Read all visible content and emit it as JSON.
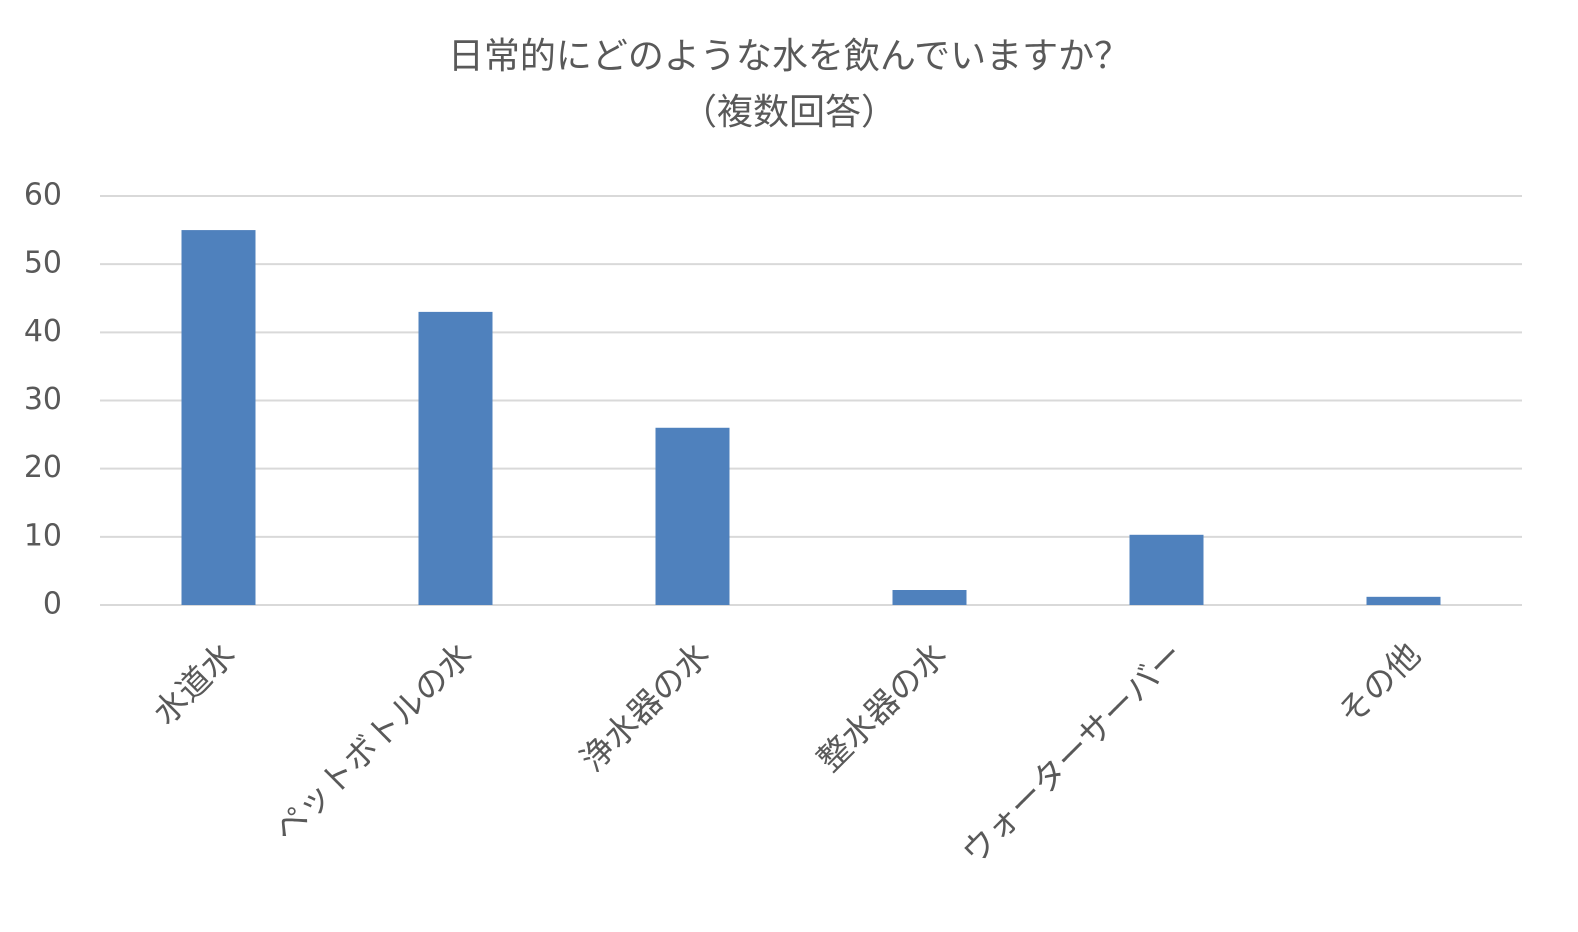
{
  "chart_data": {
    "type": "bar",
    "title": "日常的にどのような水を飲んでいますか？",
    "subtitle": "（複数回答）",
    "categories": [
      "水道水",
      "ペットボトルの水",
      "浄水器の水",
      "整水器の水",
      "ウォーターサーバー",
      "その他"
    ],
    "values": [
      55,
      43,
      26,
      2.2,
      10.3,
      1.2
    ],
    "color": "#4f81bd",
    "ylim": [
      0,
      60
    ],
    "yticks": [
      0,
      10,
      20,
      30,
      40,
      50,
      60
    ],
    "grid": true
  }
}
